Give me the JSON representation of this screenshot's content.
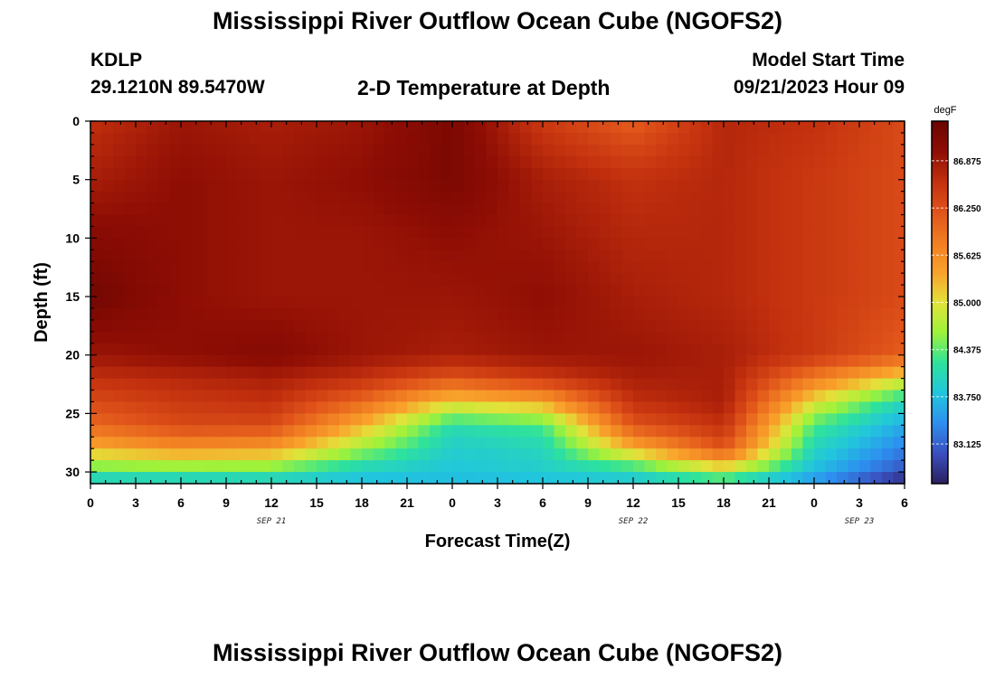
{
  "page": {
    "title": "Mississippi River Outflow Ocean Cube (NGOFS2)",
    "station": "KDLP",
    "coords": "29.1210N  89.5470W",
    "subtitle": "2-D Temperature at Depth",
    "model_label": "Model Start Time",
    "model_time": "09/21/2023 Hour 09",
    "bottom_title": "Mississippi River Outflow Ocean Cube (NGOFS2)"
  },
  "chart_data": {
    "type": "heatmap",
    "title": "2-D Temperature at Depth",
    "xlabel": "Forecast Time(Z)",
    "ylabel": "Depth (ft)",
    "colorbar_unit": "degF",
    "xlim": [
      0,
      54
    ],
    "ylim": [
      0,
      31
    ],
    "x_ticks": [
      0,
      3,
      6,
      9,
      12,
      15,
      18,
      21,
      24,
      27,
      30,
      33,
      36,
      39,
      42,
      45,
      48,
      51,
      54
    ],
    "x_tick_labels": [
      "0",
      "3",
      "6",
      "9",
      "12",
      "15",
      "18",
      "21",
      "0",
      "3",
      "6",
      "9",
      "12",
      "15",
      "18",
      "21",
      "0",
      "3",
      "6"
    ],
    "y_ticks": [
      0,
      5,
      10,
      15,
      20,
      25,
      30
    ],
    "y_tick_labels": [
      "0",
      "5",
      "10",
      "15",
      "20",
      "25",
      "30"
    ],
    "date_labels": [
      {
        "x": 12,
        "label": "SEP 21"
      },
      {
        "x": 36,
        "label": "SEP 22"
      },
      {
        "x": 51,
        "label": "SEP 23"
      }
    ],
    "colorbar": {
      "min": 82.6,
      "max": 87.4,
      "ticks": [
        83.125,
        83.75,
        84.375,
        85.0,
        85.625,
        86.25,
        86.875
      ],
      "tick_labels": [
        "83.125",
        "83.750",
        "84.375",
        "85.000",
        "85.625",
        "86.250",
        "86.875"
      ],
      "colormap": [
        "#2c1f5e",
        "#3a4fbf",
        "#2d8ff0",
        "#21c6dd",
        "#2ee29c",
        "#9ef23a",
        "#e3e23a",
        "#f9a12b",
        "#f07d22",
        "#e0531a",
        "#c2300e",
        "#8e0d04",
        "#6a0502"
      ]
    },
    "time_hours": [
      0,
      6,
      12,
      18,
      24,
      30,
      36,
      42,
      48,
      54
    ],
    "depth_ft": [
      0,
      5,
      10,
      15,
      20,
      22,
      24,
      26,
      28,
      30,
      31
    ],
    "temperature_degF": [
      [
        86.6,
        86.9,
        86.8,
        86.9,
        87.2,
        86.5,
        86.1,
        86.7,
        86.6,
        86.3
      ],
      [
        86.8,
        87.0,
        86.9,
        87.0,
        87.2,
        86.8,
        86.6,
        86.7,
        86.5,
        86.3
      ],
      [
        87.1,
        87.0,
        86.9,
        86.9,
        87.0,
        86.9,
        86.7,
        86.7,
        86.5,
        86.3
      ],
      [
        87.3,
        87.0,
        86.9,
        86.9,
        86.9,
        87.0,
        86.8,
        86.7,
        86.5,
        86.3
      ],
      [
        86.9,
        87.0,
        87.1,
        86.9,
        86.8,
        86.9,
        86.9,
        86.8,
        86.5,
        86.1
      ],
      [
        86.6,
        86.7,
        86.8,
        86.6,
        86.2,
        86.5,
        86.8,
        86.8,
        85.8,
        85.0
      ],
      [
        86.3,
        86.5,
        86.6,
        86.0,
        85.1,
        85.4,
        86.6,
        86.8,
        85.0,
        84.0
      ],
      [
        86.0,
        86.3,
        86.3,
        85.3,
        84.1,
        84.3,
        86.2,
        86.6,
        84.3,
        83.6
      ],
      [
        85.3,
        85.6,
        85.5,
        84.6,
        83.9,
        84.0,
        85.3,
        86.2,
        84.0,
        83.3
      ],
      [
        84.3,
        84.3,
        84.3,
        83.9,
        83.8,
        83.9,
        84.0,
        84.8,
        83.7,
        83.0
      ],
      [
        83.8,
        83.8,
        83.8,
        83.7,
        83.7,
        83.7,
        83.8,
        83.9,
        83.4,
        82.6
      ]
    ]
  }
}
